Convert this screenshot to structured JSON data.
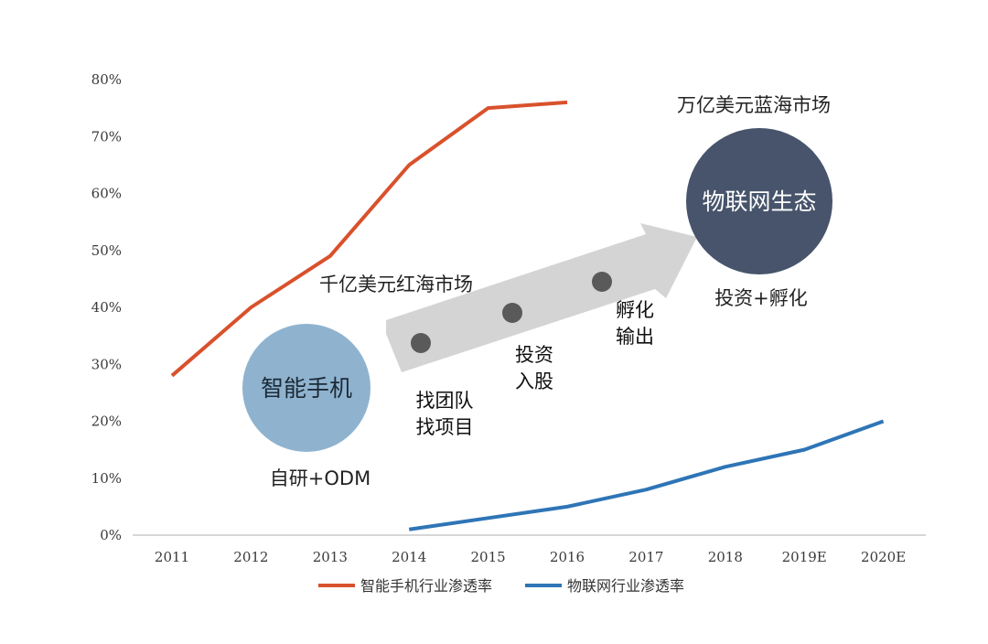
{
  "chart_data": {
    "type": "line",
    "categories": [
      "2011",
      "2012",
      "2013",
      "2014",
      "2015",
      "2016",
      "2017",
      "2018",
      "2019E",
      "2020E"
    ],
    "y_ticks": [
      "0%",
      "10%",
      "20%",
      "30%",
      "40%",
      "50%",
      "60%",
      "70%",
      "80%"
    ],
    "ylim": [
      0,
      80
    ],
    "series": [
      {
        "name": "智能手机行业渗透率",
        "color": "#d9512c",
        "values": [
          28,
          40,
          49,
          65,
          75,
          76,
          null,
          null,
          null,
          null
        ]
      },
      {
        "name": "物联网行业渗透率",
        "color": "#2e75b6",
        "values": [
          null,
          null,
          null,
          1,
          3,
          5,
          8,
          12,
          15,
          20
        ]
      }
    ],
    "legend_position": "bottom",
    "grid": false
  },
  "annotations": {
    "red_market": "千亿美元红海市场",
    "blue_market": "万亿美元蓝海市场",
    "smartphone_circle": "智能手机",
    "smartphone_caption": "自研+ODM",
    "iot_circle": "物联网生态",
    "iot_caption": "投资+孵化",
    "step1": [
      "找团队",
      "找项目"
    ],
    "step2": [
      "投资",
      "入股"
    ],
    "step3": [
      "孵化",
      "输出"
    ]
  },
  "colors": {
    "smartphone_circle": "#8fb3cf",
    "iot_circle": "#47546b",
    "arrow": "#d4d4d4",
    "dot": "#5a5a5a",
    "axis": "#c8c8c8"
  }
}
